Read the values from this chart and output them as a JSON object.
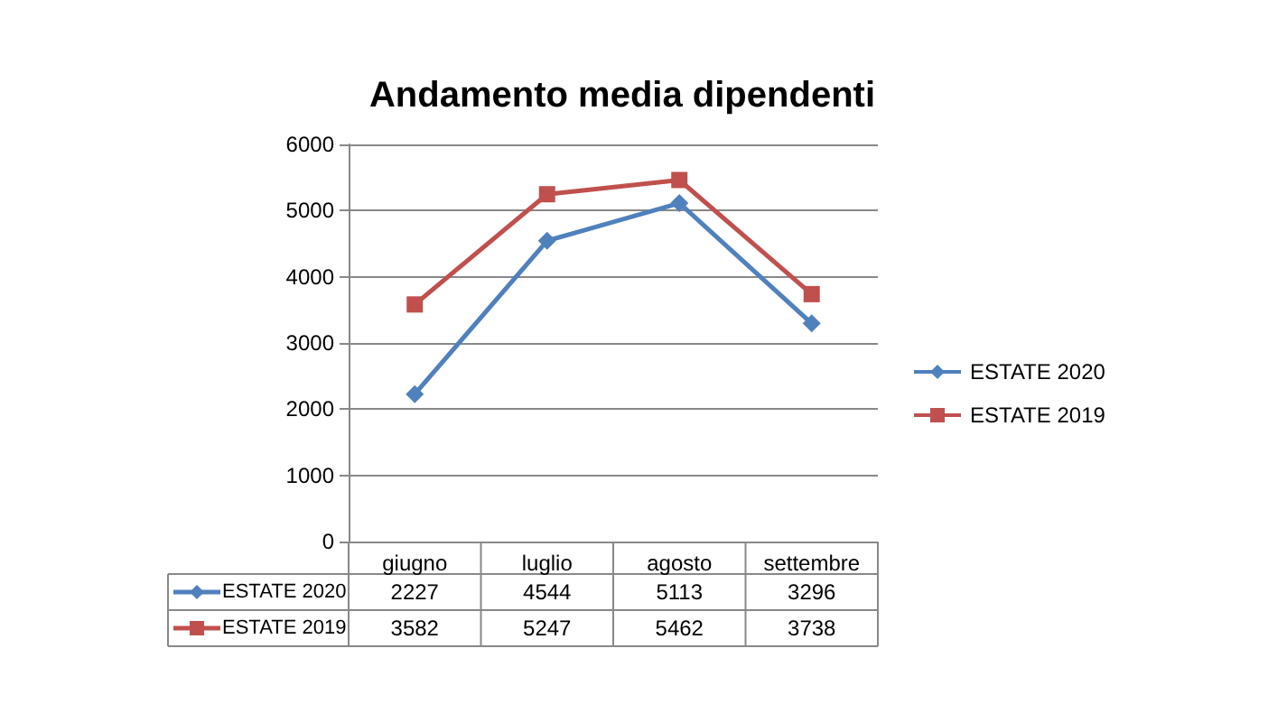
{
  "chart_data": {
    "type": "line",
    "title": "Andamento media dipendenti",
    "categories": [
      "giugno",
      "luglio",
      "agosto",
      "settembre"
    ],
    "series": [
      {
        "name": "ESTATE 2020",
        "color": "#4f81bd",
        "marker": "diamond",
        "values": [
          2227,
          4544,
          5113,
          3296
        ]
      },
      {
        "name": "ESTATE 2019",
        "color": "#c0504d",
        "marker": "square",
        "values": [
          3582,
          5247,
          5462,
          3738
        ]
      }
    ],
    "ylim": [
      0,
      6000
    ],
    "yticks": [
      0,
      1000,
      2000,
      3000,
      4000,
      5000,
      6000
    ],
    "grid": "y",
    "legend": "right",
    "data_labels": true
  }
}
